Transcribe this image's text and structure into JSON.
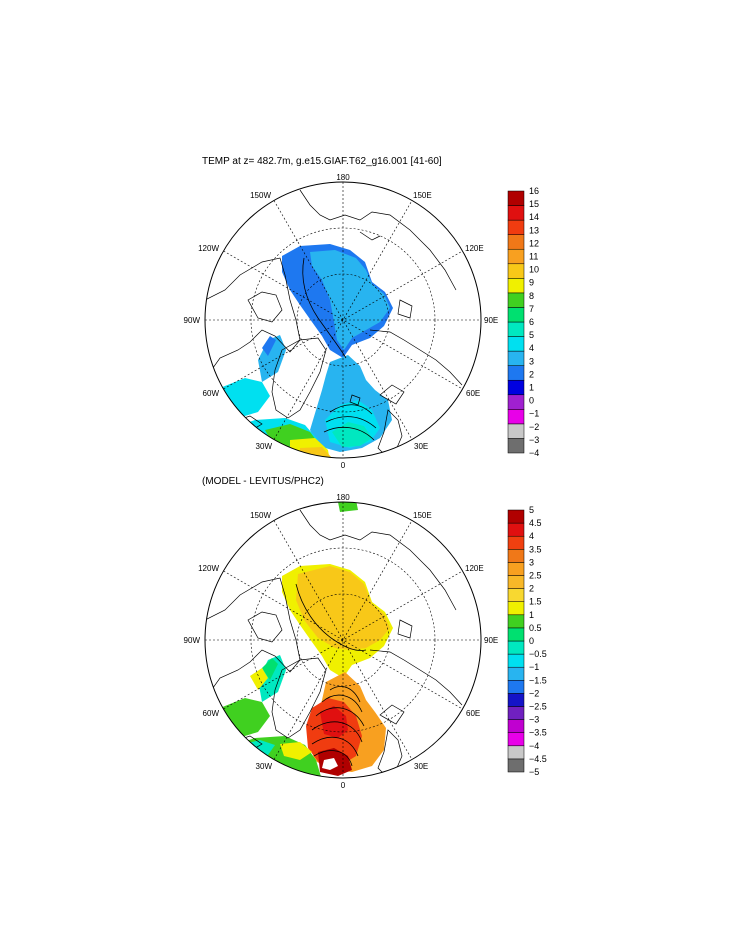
{
  "colors": {
    "temp_scale": [
      "#6e6e6e",
      "#c8c8c8",
      "#e800e8",
      "#a020d0",
      "#0000e0",
      "#1e78f0",
      "#28b4f0",
      "#00e0f0",
      "#00e8c0",
      "#00e070",
      "#40d020",
      "#f0f000",
      "#f8c818",
      "#f8a020",
      "#f07818",
      "#f03c10",
      "#e01010",
      "#b00000"
    ],
    "diff_scale": [
      "#6e6e6e",
      "#c8c8c8",
      "#e800e8",
      "#c000d0",
      "#7020c0",
      "#1414c8",
      "#1e78f0",
      "#28b4f0",
      "#00e0f0",
      "#00e8c0",
      "#00e070",
      "#40d020",
      "#f0f000",
      "#f8d830",
      "#f8b828",
      "#f8a020",
      "#f07818",
      "#f04010",
      "#e01010",
      "#b00000"
    ],
    "land_line": "#000000"
  },
  "top_map": {
    "title": "TEMP at z= 482.7m, g.e15.GIAF.T62_g16.001 [41-60]",
    "longitude_labels": [
      "180",
      "150E",
      "120E",
      "90E",
      "60E",
      "30E",
      "0",
      "30W",
      "60W",
      "90W",
      "120W",
      "150W"
    ],
    "colorbar": {
      "labels": [
        "16",
        "15",
        "14",
        "13",
        "12",
        "11",
        "10",
        "9",
        "8",
        "7",
        "6",
        "5",
        "4",
        "3",
        "2",
        "1",
        "0",
        "−1",
        "−2",
        "−3",
        "−4"
      ]
    }
  },
  "bottom_map": {
    "title": "(MODEL - LEVITUS/PHC2)",
    "longitude_labels": [
      "180",
      "150E",
      "120E",
      "90E",
      "60E",
      "30E",
      "0",
      "30W",
      "60W",
      "90W",
      "120W",
      "150W"
    ],
    "colorbar": {
      "labels": [
        "5",
        "4.5",
        "4",
        "3.5",
        "3",
        "2.5",
        "2",
        "1.5",
        "1",
        "0.5",
        "0",
        "−0.5",
        "−1",
        "−1.5",
        "−2",
        "−2.5",
        "−3",
        "−3.5",
        "−4",
        "−4.5",
        "−5"
      ]
    }
  }
}
